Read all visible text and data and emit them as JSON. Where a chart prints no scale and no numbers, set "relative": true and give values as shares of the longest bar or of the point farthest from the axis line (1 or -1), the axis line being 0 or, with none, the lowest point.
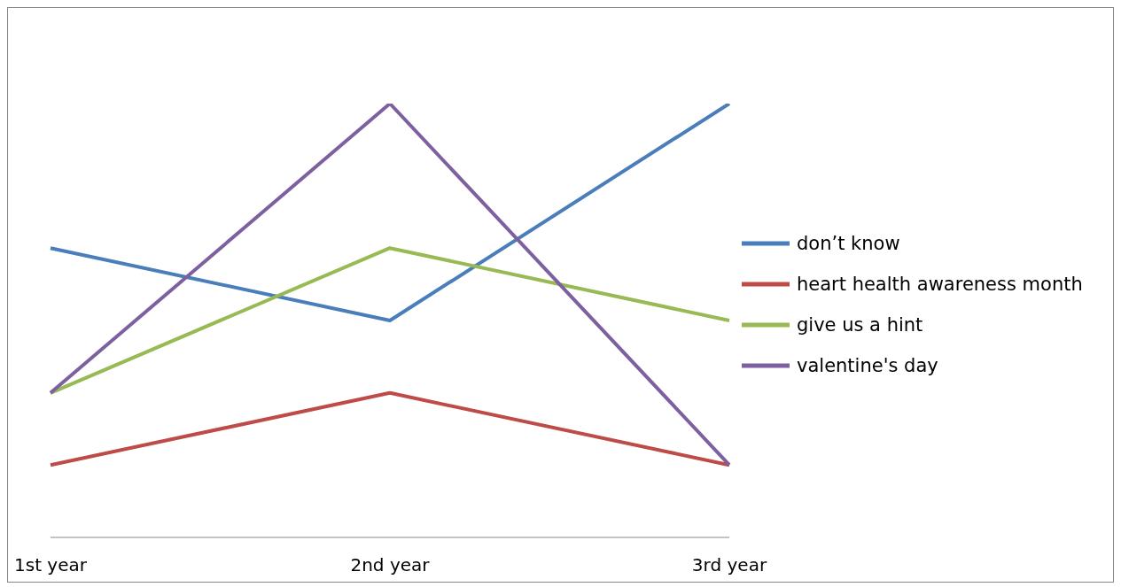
{
  "chart_data": {
    "type": "line",
    "relative": true,
    "categories": [
      "1st year",
      "2nd year",
      "3rd year"
    ],
    "series": [
      {
        "name": "don’t know",
        "color": "#4a7ebb",
        "values": [
          0.667,
          0.5,
          1
        ]
      },
      {
        "name": "heart health awareness month",
        "color": "#be4b48",
        "values": [
          0.167,
          0.333,
          0.167
        ]
      },
      {
        "name": "give us a hint",
        "color": "#98b954",
        "values": [
          0.333,
          0.667,
          0.5
        ]
      },
      {
        "name": "valentine's day",
        "color": "#7d60a0",
        "values": [
          0.333,
          1,
          0.167
        ]
      }
    ],
    "legend": "right",
    "marker": "none",
    "line_style": "solid",
    "grid": false
  }
}
